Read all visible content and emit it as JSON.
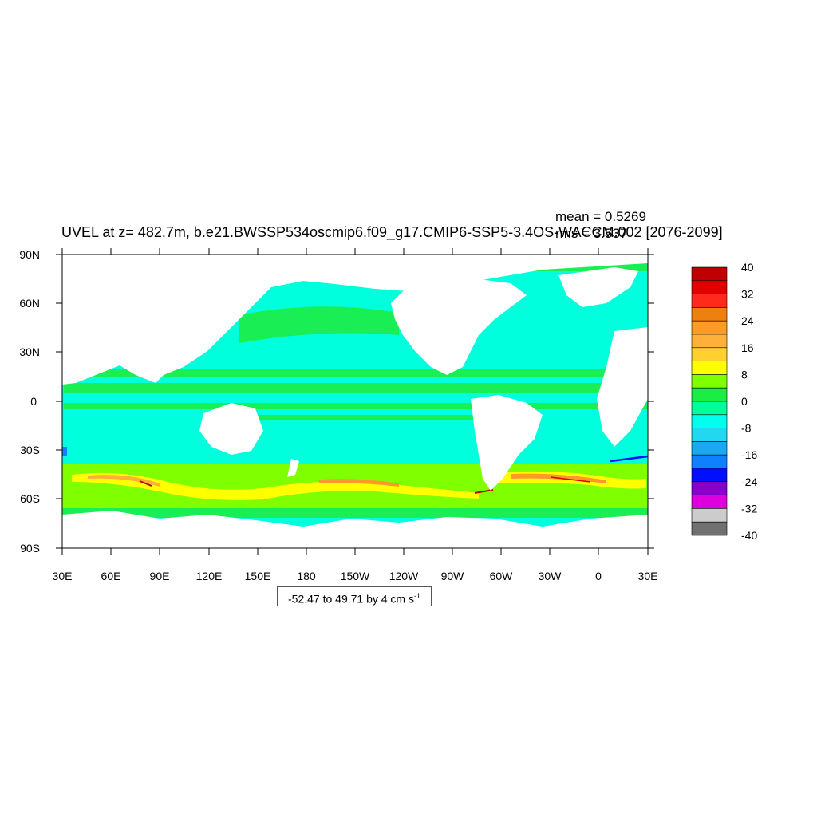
{
  "title": "UVEL at z= 482.7m, b.e21.BWSSP534oscmip6.f09_g17.CMIP6-SSP5-3.4OS-WACCM.002 [2076-2099]",
  "stats": {
    "mean": "mean = 0.5269",
    "rms": "rms = 3.537"
  },
  "range_label": {
    "text": "-52.47 to 49.71 by 4 cm s",
    "unit_exp": "-1"
  },
  "axes": {
    "y_ticks": [
      "90N",
      "60N",
      "30N",
      "0",
      "30S",
      "60S",
      "90S"
    ],
    "x_ticks": [
      "30E",
      "60E",
      "90E",
      "120E",
      "150E",
      "180",
      "150W",
      "120W",
      "90W",
      "60W",
      "30W",
      "0",
      "30E"
    ]
  },
  "colorbar": {
    "labels": [
      "40",
      "32",
      "24",
      "16",
      "8",
      "0",
      "-8",
      "-16",
      "-24",
      "-32",
      "-40"
    ],
    "colors": [
      "#c00000",
      "#e00000",
      "#ff2a1a",
      "#ee8010",
      "#ff9a2a",
      "#ffb03a",
      "#ffd030",
      "#ffff00",
      "#80ff00",
      "#1aee44",
      "#00ff99",
      "#00ffee",
      "#22d8f0",
      "#1aa8f0",
      "#0f80ff",
      "#0010ff",
      "#8800cc",
      "#dd00dd",
      "#cccccc",
      "#707070"
    ]
  },
  "chart_data": {
    "type": "heatmap",
    "projection": "cylindrical-equidistant",
    "x_range": [
      30,
      390
    ],
    "y_range": [
      -90,
      90
    ],
    "colorbar_min": -40,
    "colorbar_max": 40,
    "interval": 4
  }
}
